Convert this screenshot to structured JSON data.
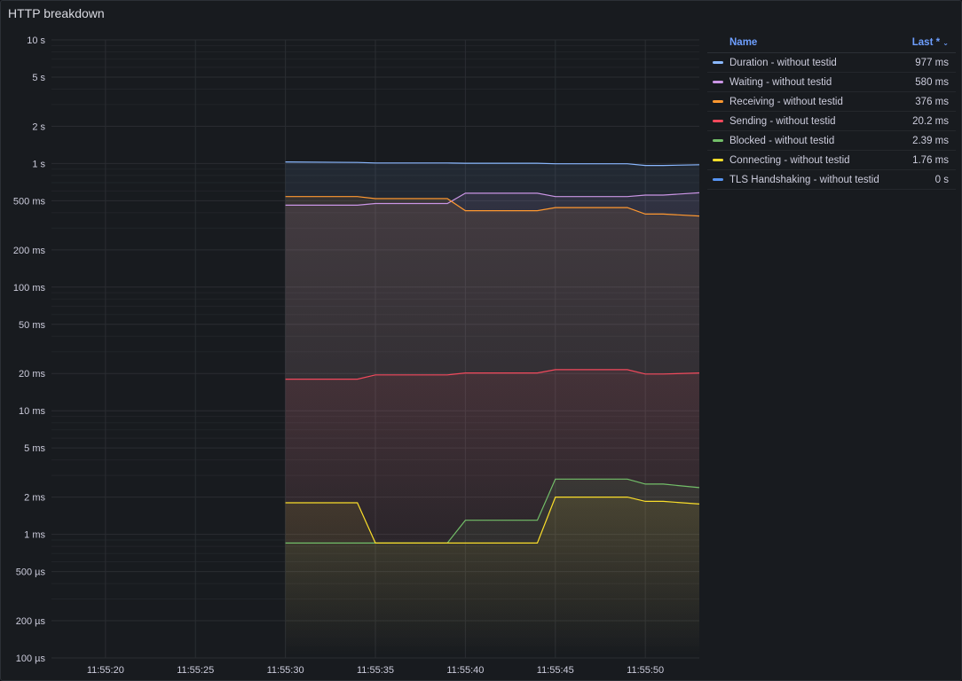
{
  "panel": {
    "title": "HTTP breakdown"
  },
  "legend": {
    "name_header": "Name",
    "value_header": "Last *",
    "sort_icon": "chevron-down-icon",
    "rows": [
      {
        "name": "Duration - without testid",
        "value": "977 ms",
        "color": "#8ab8ff"
      },
      {
        "name": "Waiting - without testid",
        "value": "580 ms",
        "color": "#ca95e5"
      },
      {
        "name": "Receiving - without testid",
        "value": "376 ms",
        "color": "#ff9830"
      },
      {
        "name": "Sending - without testid",
        "value": "20.2 ms",
        "color": "#f2495c"
      },
      {
        "name": "Blocked - without testid",
        "value": "2.39 ms",
        "color": "#73bf69"
      },
      {
        "name": "Connecting - without testid",
        "value": "1.76 ms",
        "color": "#fade2a"
      },
      {
        "name": "TLS Handshaking - without testid",
        "value": "0 s",
        "color": "#5794f2"
      }
    ]
  },
  "chart_data": {
    "type": "line",
    "title": "HTTP breakdown",
    "y_scale": "log",
    "ylim_ms": [
      0.1,
      10000
    ],
    "y_ticks": [
      {
        "label": "10 s",
        "ms": 10000
      },
      {
        "label": "5 s",
        "ms": 5000
      },
      {
        "label": "2 s",
        "ms": 2000
      },
      {
        "label": "1 s",
        "ms": 1000
      },
      {
        "label": "500 ms",
        "ms": 500
      },
      {
        "label": "200 ms",
        "ms": 200
      },
      {
        "label": "100 ms",
        "ms": 100
      },
      {
        "label": "50 ms",
        "ms": 50
      },
      {
        "label": "20 ms",
        "ms": 20
      },
      {
        "label": "10 ms",
        "ms": 10
      },
      {
        "label": "5 ms",
        "ms": 5
      },
      {
        "label": "2 ms",
        "ms": 2
      },
      {
        "label": "1 ms",
        "ms": 1
      },
      {
        "label": "500 µs",
        "ms": 0.5
      },
      {
        "label": "200 µs",
        "ms": 0.2
      },
      {
        "label": "100 µs",
        "ms": 0.1
      }
    ],
    "x_ticks": [
      "11:55:20",
      "11:55:25",
      "11:55:30",
      "11:55:35",
      "11:55:40",
      "11:55:45",
      "11:55:50"
    ],
    "x_range": [
      "11:55:17",
      "11:55:53"
    ],
    "x": [
      "11:55:30",
      "11:55:34",
      "11:55:35",
      "11:55:39",
      "11:55:40",
      "11:55:44",
      "11:55:45",
      "11:55:49",
      "11:55:50",
      "11:55:51",
      "11:55:53"
    ],
    "series": [
      {
        "name": "Duration - without testid",
        "color": "#8ab8ff",
        "fill": true,
        "values": [
          1030,
          1020,
          1010,
          1010,
          1005,
          1005,
          995,
          995,
          965,
          965,
          977
        ]
      },
      {
        "name": "Waiting - without testid",
        "color": "#ca95e5",
        "fill": true,
        "values": [
          460,
          460,
          475,
          475,
          575,
          575,
          540,
          540,
          555,
          555,
          580
        ]
      },
      {
        "name": "Receiving - without testid",
        "color": "#ff9830",
        "fill": true,
        "values": [
          540,
          540,
          520,
          520,
          415,
          415,
          440,
          440,
          390,
          390,
          376
        ]
      },
      {
        "name": "Sending - without testid",
        "color": "#f2495c",
        "fill": true,
        "values": [
          18,
          18,
          19.5,
          19.5,
          20.2,
          20.2,
          21.5,
          21.5,
          19.8,
          19.8,
          20.2
        ]
      },
      {
        "name": "Blocked - without testid",
        "color": "#73bf69",
        "fill": true,
        "values": [
          0.85,
          0.85,
          0.85,
          0.85,
          1.3,
          1.3,
          2.8,
          2.8,
          2.55,
          2.55,
          2.39
        ]
      },
      {
        "name": "Connecting - without testid",
        "color": "#fade2a",
        "fill": true,
        "values": [
          1.8,
          1.8,
          0.85,
          0.85,
          0.85,
          0.85,
          2.0,
          2.0,
          1.85,
          1.85,
          1.76
        ]
      },
      {
        "name": "TLS Handshaking - without testid",
        "color": "#5794f2",
        "fill": false,
        "values": [
          0,
          0,
          0,
          0,
          0,
          0,
          0,
          0,
          0,
          0,
          0
        ]
      }
    ],
    "grid": true,
    "legend_position": "right"
  }
}
